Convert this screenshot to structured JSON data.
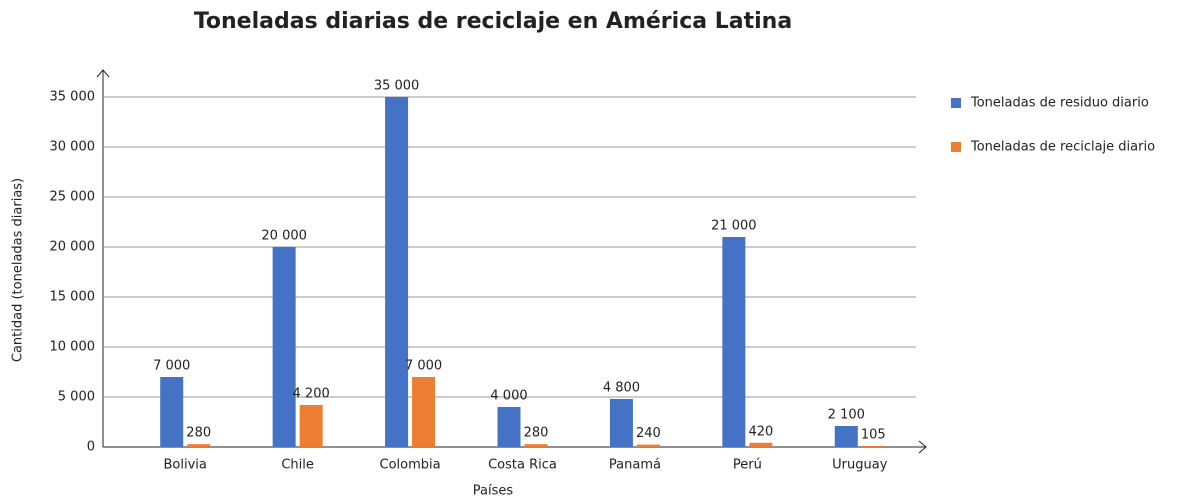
{
  "chart_data": {
    "type": "bar",
    "title": "Toneladas diarias de reciclaje en América Latina",
    "x_label": "Países",
    "y_label": "Cantidad (toneladas diarias)",
    "categories": [
      "Bolivia",
      "Chile",
      "Colombia",
      "Costa Rica",
      "Panamá",
      "Perú",
      "Uruguay"
    ],
    "series": [
      {
        "name": "Toneladas de residuo diario",
        "color": "#4472c4",
        "values": [
          7000,
          20000,
          35000,
          4000,
          4800,
          21000,
          2100
        ],
        "value_labels": [
          "7 000",
          "20 000",
          "35 000",
          "4 000",
          "4 800",
          "21 000",
          "2 100"
        ]
      },
      {
        "name": "Toneladas de reciclaje diario",
        "color": "#ed7d31",
        "values": [
          280,
          4200,
          7000,
          280,
          240,
          420,
          105
        ],
        "value_labels": [
          "280",
          "4 200",
          "7 000",
          "280",
          "240",
          "420",
          "105"
        ]
      }
    ],
    "ylim": [
      0,
      35000
    ],
    "yticks": [
      0,
      {
        "value": 5000,
        "label": "5 000"
      },
      {
        "value": 10000,
        "label": "10 000"
      },
      {
        "value": 15000,
        "label": "15 000"
      },
      {
        "value": 20000,
        "label": "20 000"
      },
      {
        "value": 25000,
        "label": "25 000"
      },
      {
        "value": 30000,
        "label": "30 000"
      },
      {
        "value": 35000,
        "label": "35 000"
      }
    ],
    "grid": true,
    "legend": "right"
  }
}
